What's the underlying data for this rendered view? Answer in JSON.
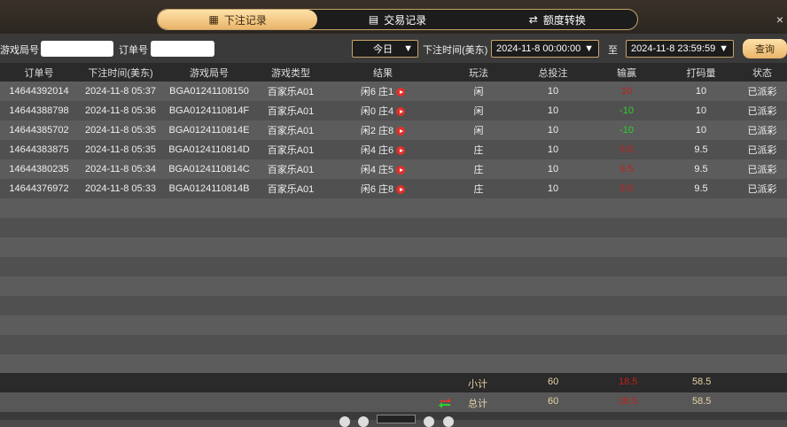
{
  "tabs": [
    {
      "label": "下注记录",
      "icon": "calendar-icon",
      "active": true
    },
    {
      "label": "交易记录",
      "icon": "document-icon"
    },
    {
      "label": "额度转换",
      "icon": "exchange-icon"
    }
  ],
  "close_label": "×",
  "filter": {
    "game_round_label": "游戏局号",
    "game_round_value": "",
    "order_label": "订单号",
    "order_value": "",
    "period": "今日",
    "time_label": "下注时间(美东)",
    "start": "2024-11-8 00:00:00",
    "to_label": "至",
    "end": "2024-11-8 23:59:59",
    "query": "查询"
  },
  "columns": [
    "订单号",
    "下注时间(美东)",
    "游戏局号",
    "游戏类型",
    "结果",
    "玩法",
    "总投注",
    "输赢",
    "打码量",
    "状态"
  ],
  "rows": [
    [
      "14644392014",
      "2024-11-8 05:37",
      "BGA01241108150",
      "百家乐A01",
      "闲6 庄1",
      "闲",
      "10",
      "10",
      "10",
      "已派彩"
    ],
    [
      "14644388798",
      "2024-11-8 05:36",
      "BGA0124110814F",
      "百家乐A01",
      "闲0 庄4",
      "闲",
      "10",
      "-10",
      "10",
      "已派彩"
    ],
    [
      "14644385702",
      "2024-11-8 05:35",
      "BGA0124110814E",
      "百家乐A01",
      "闲2 庄8",
      "闲",
      "10",
      "-10",
      "10",
      "已派彩"
    ],
    [
      "14644383875",
      "2024-11-8 05:35",
      "BGA0124110814D",
      "百家乐A01",
      "闲4 庄6",
      "庄",
      "10",
      "9.5",
      "9.5",
      "已派彩"
    ],
    [
      "14644380235",
      "2024-11-8 05:34",
      "BGA0124110814C",
      "百家乐A01",
      "闲4 庄5",
      "庄",
      "10",
      "9.5",
      "9.5",
      "已派彩"
    ],
    [
      "14644376972",
      "2024-11-8 05:33",
      "BGA0124110814B",
      "百家乐A01",
      "闲6 庄8",
      "庄",
      "10",
      "9.5",
      "9.5",
      "已派彩"
    ]
  ],
  "subtotal": {
    "label": "小计",
    "bet": "60",
    "winloss": "18.5",
    "rolling": "58.5"
  },
  "total": {
    "label": "总计",
    "bet": "60",
    "winloss": "18.5",
    "rolling": "58.5"
  },
  "colors": {
    "accent": "#e9b46a",
    "win": "#c0211c",
    "loss": "#2ed12e"
  }
}
